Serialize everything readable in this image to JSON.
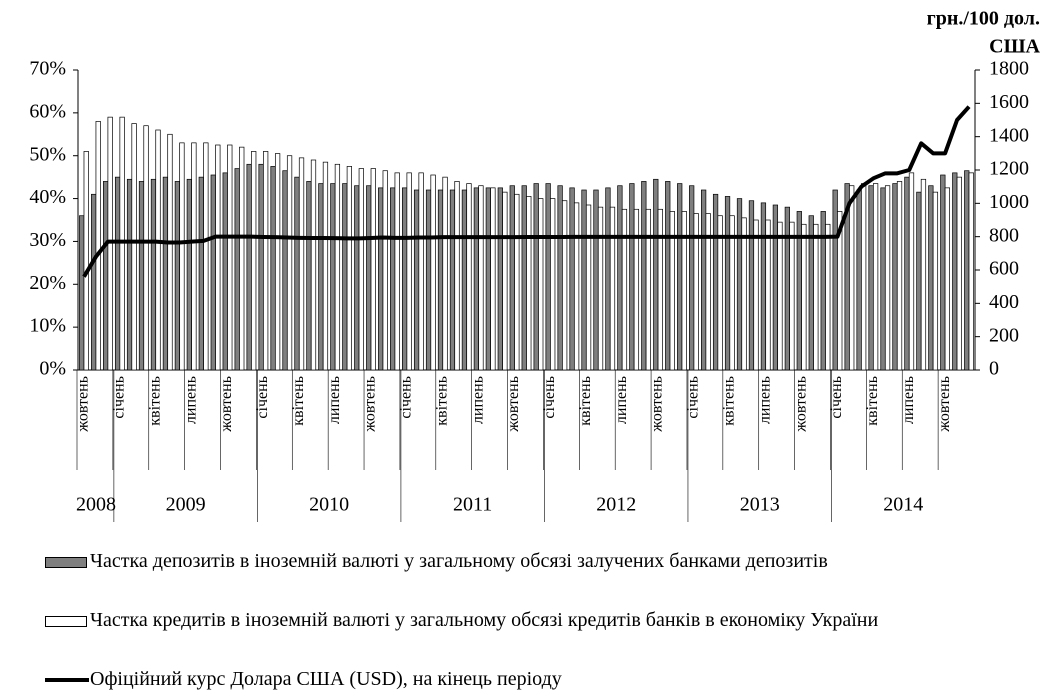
{
  "chart_data": {
    "type": "bar-line",
    "y2_label": [
      "грн./100  дол.",
      "США"
    ],
    "categories": [
      "жовтень",
      null,
      null,
      "січень",
      null,
      null,
      "квітень",
      null,
      null,
      "липень",
      null,
      null,
      "жовтень",
      null,
      null,
      "січень",
      null,
      null,
      "квітень",
      null,
      null,
      "липень",
      null,
      null,
      "жовтень",
      null,
      null,
      "січень",
      null,
      null,
      "квітень",
      null,
      null,
      "липень",
      null,
      null,
      "жовтень",
      null,
      null,
      "січень",
      null,
      null,
      "квітень",
      null,
      null,
      "липень",
      null,
      null,
      "жовтень",
      null,
      null,
      "січень",
      null,
      null,
      "квітень",
      null,
      null,
      "липень",
      null,
      null,
      "жовтень",
      null,
      null,
      "січень",
      null,
      null,
      "квітень",
      null,
      null,
      "липень",
      null,
      null,
      "жовтень",
      null,
      null
    ],
    "groups": [
      {
        "label": "2008",
        "count": 3
      },
      {
        "label": "2009",
        "count": 12
      },
      {
        "label": "2010",
        "count": 12
      },
      {
        "label": "2011",
        "count": 12
      },
      {
        "label": "2012",
        "count": 12
      },
      {
        "label": "2013",
        "count": 12
      },
      {
        "label": "2014",
        "count": 12
      }
    ],
    "series": [
      {
        "name": "Частка депозитів в іноземній  валюті у загальному обсязі залучених банками депозитів",
        "kind": "bar",
        "color": "#7f7f7f",
        "values": [
          36,
          41,
          44,
          45,
          44.5,
          44,
          44.5,
          45,
          44,
          44.5,
          45,
          45.5,
          46,
          47,
          48,
          48,
          47.5,
          46.5,
          45,
          44,
          43.5,
          43.5,
          43.5,
          43,
          43,
          42.5,
          42.5,
          42.5,
          42,
          42,
          42,
          42,
          42,
          42.5,
          42.5,
          42.5,
          43,
          43,
          43.5,
          43.5,
          43,
          42.5,
          42,
          42,
          42.5,
          43,
          43.5,
          44,
          44.5,
          44,
          43.5,
          43,
          42,
          41,
          40.5,
          40,
          39.5,
          39,
          38.5,
          38,
          37,
          36,
          37,
          42,
          43.5,
          42,
          43,
          42.5,
          43.5,
          45,
          41.5,
          43,
          45.5,
          46,
          46.5
        ]
      },
      {
        "name": "Частка кредитів в іноземній валюті у загальному обсязі кредитів  банків в економіку України",
        "kind": "bar",
        "color": "#ffffff",
        "values": [
          51,
          58,
          59,
          59,
          57.5,
          57,
          56,
          55,
          53,
          53,
          53,
          52.5,
          52.5,
          52,
          51,
          51,
          50.5,
          50,
          49.5,
          49,
          48.5,
          48,
          47.5,
          47,
          47,
          46.5,
          46,
          46,
          46,
          45.5,
          45,
          44,
          43.5,
          43,
          42.5,
          41.5,
          41,
          40.5,
          40,
          40,
          39.5,
          39,
          38.5,
          38,
          38,
          37.5,
          37.5,
          37.5,
          37.5,
          37,
          37,
          36.5,
          36.5,
          36,
          36,
          35.5,
          35,
          35,
          34.5,
          34.5,
          34,
          34,
          34,
          37,
          43,
          43.5,
          43.5,
          43,
          44,
          46,
          44.5,
          41.5,
          42.5,
          45,
          46
        ]
      },
      {
        "name": "Офіційний курс Долара США  (USD), на кінець  періоду",
        "kind": "line",
        "axis": "y2",
        "color": "#000000",
        "values": [
          560,
          680,
          770,
          770,
          770,
          770,
          770,
          765,
          765,
          770,
          775,
          800,
          800,
          800,
          800,
          798,
          797,
          795,
          793,
          792,
          792,
          791,
          790,
          790,
          792,
          795,
          793,
          793,
          795,
          795,
          797,
          797,
          797,
          797,
          797,
          797,
          797,
          798,
          798,
          798,
          798,
          799,
          799,
          799,
          799,
          799,
          799,
          799,
          799,
          799,
          799,
          799,
          799,
          799,
          799,
          799,
          799,
          799,
          799,
          799,
          799,
          799,
          799,
          800,
          1000,
          1100,
          1150,
          1180,
          1180,
          1200,
          1360,
          1300,
          1300,
          1500,
          1580
        ]
      }
    ],
    "ylim": [
      0,
      70
    ],
    "yticks": [
      {
        "value": 0,
        "label": "0%"
      },
      {
        "value": 10,
        "label": "10%"
      },
      {
        "value": 20,
        "label": "20%"
      },
      {
        "value": 30,
        "label": "30%"
      },
      {
        "value": 40,
        "label": "40%"
      },
      {
        "value": 50,
        "label": "50%"
      },
      {
        "value": 60,
        "label": "60%"
      },
      {
        "value": 70,
        "label": "70%"
      }
    ],
    "y2lim": [
      0,
      1800
    ],
    "y2ticks": [
      0,
      200,
      400,
      600,
      800,
      1000,
      1200,
      1400,
      1600,
      1800
    ],
    "grid": false
  }
}
